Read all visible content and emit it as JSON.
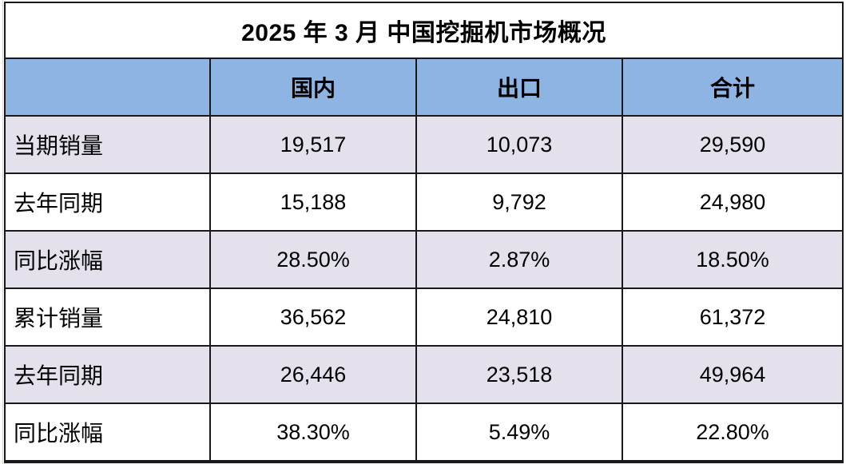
{
  "chart_data": {
    "type": "table",
    "title": "2025 年 3 月 中国挖掘机市场概况",
    "columns": [
      "",
      "国内",
      "出口",
      "合计"
    ],
    "rows": [
      {
        "label": "当期销量",
        "values": [
          "19,517",
          "10,073",
          "29,590"
        ]
      },
      {
        "label": "去年同期",
        "values": [
          "15,188",
          "9,792",
          "24,980"
        ]
      },
      {
        "label": "同比涨幅",
        "values": [
          "28.50%",
          "2.87%",
          "18.50%"
        ]
      },
      {
        "label": "累计销量",
        "values": [
          "36,562",
          "24,810",
          "61,372"
        ]
      },
      {
        "label": "去年同期",
        "values": [
          "26,446",
          "23,518",
          "49,964"
        ]
      },
      {
        "label": "同比涨幅",
        "values": [
          "38.30%",
          "5.49%",
          "22.80%"
        ]
      }
    ]
  },
  "colors": {
    "header_bg": "#8DB4E2",
    "row_alt_bg": "#E4E1EC",
    "row_bg": "#FFFFFF",
    "border": "#191919",
    "text": "#000000"
  }
}
